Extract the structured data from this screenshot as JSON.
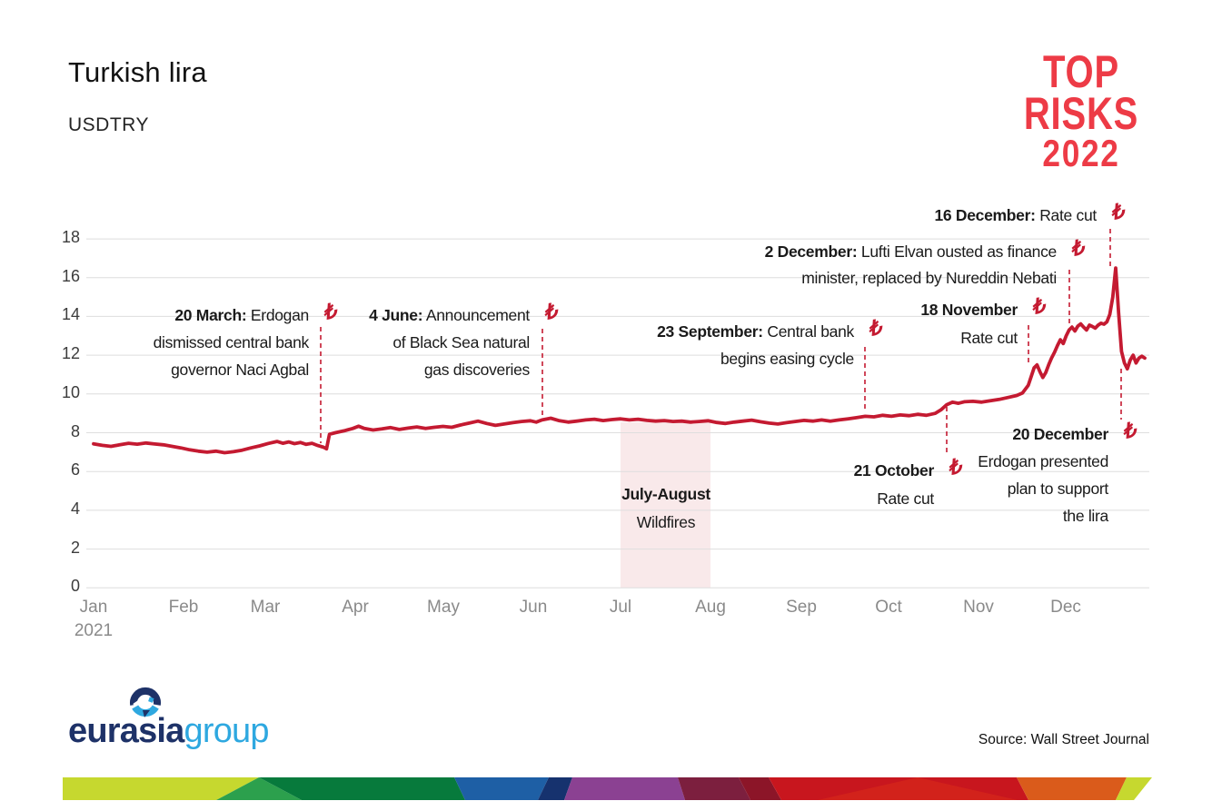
{
  "header": {
    "title": "Turkish lira",
    "subtitle": "USDTRY"
  },
  "logo": {
    "line1": "TOP",
    "line2": "RISKS",
    "line3": "2022",
    "color": "#ED3B46"
  },
  "icons": {
    "lira": "₺"
  },
  "chart_data": {
    "type": "line",
    "title": "Turkish lira",
    "subtitle": "USDTRY",
    "ylabel": "",
    "xlabel": "",
    "ylim": [
      0,
      18
    ],
    "yticks": [
      0,
      2,
      4,
      6,
      8,
      10,
      12,
      14,
      16,
      18
    ],
    "x_unit": "day of year 2021",
    "xlabel_ticks": [
      "Jan",
      "Feb",
      "Mar",
      "Apr",
      "May",
      "Jun",
      "Jul",
      "Aug",
      "Sep",
      "Oct",
      "Nov",
      "Dec"
    ],
    "x_year_label": "2021",
    "grid": true,
    "line_color": "#C41A31",
    "grid_color": "#DEDEDE",
    "points": [
      [
        0,
        7.43
      ],
      [
        3,
        7.35
      ],
      [
        6,
        7.3
      ],
      [
        9,
        7.38
      ],
      [
        12,
        7.46
      ],
      [
        15,
        7.41
      ],
      [
        18,
        7.47
      ],
      [
        21,
        7.42
      ],
      [
        24,
        7.38
      ],
      [
        27,
        7.3
      ],
      [
        30,
        7.22
      ],
      [
        33,
        7.12
      ],
      [
        36,
        7.05
      ],
      [
        39,
        7.0
      ],
      [
        42,
        7.05
      ],
      [
        45,
        6.97
      ],
      [
        48,
        7.02
      ],
      [
        51,
        7.1
      ],
      [
        54,
        7.22
      ],
      [
        57,
        7.32
      ],
      [
        60,
        7.45
      ],
      [
        63,
        7.55
      ],
      [
        65,
        7.46
      ],
      [
        67,
        7.53
      ],
      [
        69,
        7.44
      ],
      [
        71,
        7.5
      ],
      [
        73,
        7.4
      ],
      [
        75,
        7.46
      ],
      [
        77,
        7.34
      ],
      [
        79,
        7.25
      ],
      [
        80,
        7.17
      ],
      [
        81,
        7.92
      ],
      [
        83,
        8.0
      ],
      [
        86,
        8.1
      ],
      [
        89,
        8.22
      ],
      [
        91,
        8.34
      ],
      [
        93,
        8.22
      ],
      [
        96,
        8.14
      ],
      [
        99,
        8.2
      ],
      [
        102,
        8.27
      ],
      [
        105,
        8.17
      ],
      [
        108,
        8.24
      ],
      [
        111,
        8.3
      ],
      [
        114,
        8.22
      ],
      [
        117,
        8.28
      ],
      [
        120,
        8.33
      ],
      [
        123,
        8.28
      ],
      [
        126,
        8.4
      ],
      [
        129,
        8.5
      ],
      [
        132,
        8.6
      ],
      [
        135,
        8.48
      ],
      [
        138,
        8.38
      ],
      [
        141,
        8.45
      ],
      [
        144,
        8.52
      ],
      [
        147,
        8.58
      ],
      [
        150,
        8.62
      ],
      [
        152,
        8.55
      ],
      [
        154,
        8.66
      ],
      [
        157,
        8.75
      ],
      [
        160,
        8.62
      ],
      [
        163,
        8.55
      ],
      [
        166,
        8.6
      ],
      [
        169,
        8.66
      ],
      [
        172,
        8.7
      ],
      [
        175,
        8.63
      ],
      [
        178,
        8.68
      ],
      [
        181,
        8.72
      ],
      [
        184,
        8.66
      ],
      [
        187,
        8.7
      ],
      [
        190,
        8.64
      ],
      [
        193,
        8.6
      ],
      [
        196,
        8.63
      ],
      [
        199,
        8.58
      ],
      [
        202,
        8.6
      ],
      [
        205,
        8.55
      ],
      [
        208,
        8.58
      ],
      [
        211,
        8.62
      ],
      [
        214,
        8.53
      ],
      [
        217,
        8.48
      ],
      [
        220,
        8.55
      ],
      [
        223,
        8.6
      ],
      [
        226,
        8.65
      ],
      [
        229,
        8.57
      ],
      [
        232,
        8.5
      ],
      [
        235,
        8.45
      ],
      [
        238,
        8.52
      ],
      [
        241,
        8.58
      ],
      [
        244,
        8.64
      ],
      [
        247,
        8.6
      ],
      [
        250,
        8.66
      ],
      [
        253,
        8.6
      ],
      [
        256,
        8.66
      ],
      [
        259,
        8.72
      ],
      [
        262,
        8.78
      ],
      [
        265,
        8.85
      ],
      [
        268,
        8.82
      ],
      [
        271,
        8.9
      ],
      [
        274,
        8.85
      ],
      [
        277,
        8.92
      ],
      [
        280,
        8.88
      ],
      [
        283,
        8.95
      ],
      [
        286,
        8.9
      ],
      [
        289,
        9.0
      ],
      [
        291,
        9.18
      ],
      [
        293,
        9.45
      ],
      [
        295,
        9.58
      ],
      [
        297,
        9.52
      ],
      [
        299,
        9.6
      ],
      [
        302,
        9.62
      ],
      [
        305,
        9.58
      ],
      [
        308,
        9.65
      ],
      [
        311,
        9.72
      ],
      [
        314,
        9.82
      ],
      [
        317,
        9.92
      ],
      [
        319,
        10.05
      ],
      [
        321,
        10.45
      ],
      [
        322,
        10.9
      ],
      [
        323,
        11.35
      ],
      [
        324,
        11.5
      ],
      [
        325,
        11.15
      ],
      [
        326,
        10.85
      ],
      [
        327,
        11.1
      ],
      [
        328,
        11.5
      ],
      [
        329,
        11.85
      ],
      [
        330,
        12.15
      ],
      [
        331,
        12.5
      ],
      [
        332,
        12.8
      ],
      [
        333,
        12.6
      ],
      [
        334,
        13.0
      ],
      [
        335,
        13.3
      ],
      [
        336,
        13.45
      ],
      [
        337,
        13.25
      ],
      [
        338,
        13.5
      ],
      [
        339,
        13.62
      ],
      [
        340,
        13.45
      ],
      [
        341,
        13.3
      ],
      [
        342,
        13.55
      ],
      [
        343,
        13.48
      ],
      [
        344,
        13.4
      ],
      [
        345,
        13.55
      ],
      [
        346,
        13.65
      ],
      [
        347,
        13.6
      ],
      [
        348,
        13.72
      ],
      [
        349,
        14.1
      ],
      [
        350,
        15.0
      ],
      [
        351,
        16.5
      ],
      [
        352,
        14.2
      ],
      [
        353,
        12.2
      ],
      [
        354,
        11.6
      ],
      [
        355,
        11.3
      ],
      [
        356,
        11.75
      ],
      [
        357,
        12.0
      ],
      [
        358,
        11.6
      ],
      [
        359,
        11.85
      ],
      [
        360,
        11.95
      ],
      [
        361,
        11.85
      ]
    ],
    "shaded_region": {
      "label_line1": "July-August",
      "label_line2": "Wildfires",
      "color": "#F9E9EA",
      "x_from_day": 181,
      "x_to_day": 212
    }
  },
  "annotations": [
    {
      "id": "mar20",
      "day": 78,
      "date": "20 March:",
      "date_rest": " Erdogan",
      "lines": [
        "dismissed central bank",
        "governor Naci Agbal"
      ]
    },
    {
      "id": "jun4",
      "day": 154,
      "date": "4 June:",
      "date_rest": " Announcement",
      "lines": [
        "of Black Sea natural",
        "gas discoveries"
      ]
    },
    {
      "id": "sep23",
      "day": 265,
      "date": "23 September:",
      "date_rest": " Central bank",
      "lines": [
        "begins easing cycle"
      ]
    },
    {
      "id": "oct21",
      "day": 293,
      "date": "21 October",
      "date_rest": "",
      "lines": [
        "Rate cut"
      ]
    },
    {
      "id": "nov18",
      "day": 321,
      "date": "18 November",
      "date_rest": "",
      "lines": [
        "Rate cut"
      ]
    },
    {
      "id": "dec2",
      "day": 335,
      "date": "2 December:",
      "date_rest": " Lufti Elvan ousted as finance",
      "lines": [
        "minister, replaced by Nureddin Nebati"
      ]
    },
    {
      "id": "dec16",
      "day": 349,
      "date": "16 December:",
      "date_rest": " Rate cut",
      "lines": []
    },
    {
      "id": "dec20",
      "day": 353,
      "date": "20 December",
      "date_rest": "",
      "lines": [
        "Erdogan presented",
        "plan to support",
        "the lira"
      ]
    }
  ],
  "footer": {
    "brand_dark": "eurasia",
    "brand_light": "group",
    "brand_dark_color": "#1E3268",
    "brand_light_color": "#2EA8E0",
    "source": "Source: Wall Street Journal"
  },
  "footer_bar": {
    "colors": [
      "#C6D82F",
      "#2CA04D",
      "#077A3C",
      "#1E5FA5",
      "#16326E",
      "#8B4192",
      "#7C1F3E",
      "#8C1528",
      "#C8161E",
      "#D2221B",
      "#DA5B1B",
      "#C6D82F"
    ]
  }
}
